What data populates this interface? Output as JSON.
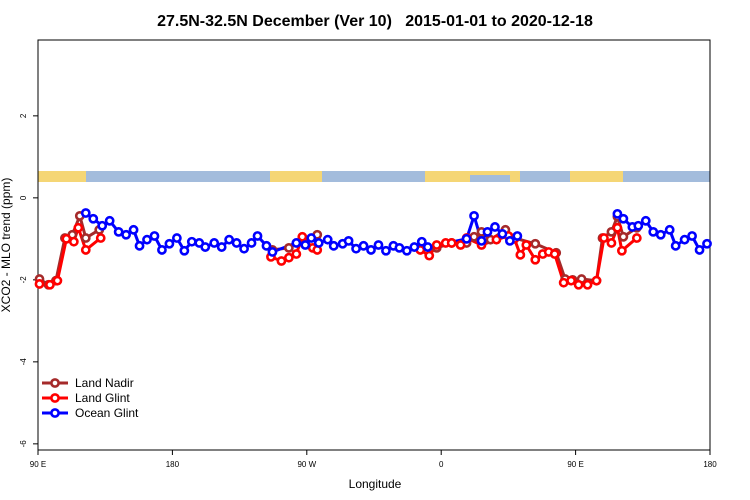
{
  "chart_data": {
    "type": "line",
    "title": "27.5N-32.5N December (Ver 10)   2015-01-01 to 2020-12-18",
    "x_label": "Longitude",
    "y_label": "XCO2 - MLO trend (ppm)",
    "xlim": [
      90,
      540
    ],
    "xticks": [
      {
        "value": 90,
        "label": "90 E"
      },
      180,
      {
        "value": 270,
        "label": "90 W"
      },
      {
        "value": 360,
        "label": "0"
      },
      {
        "value": 450,
        "label": "90 E"
      },
      {
        "value": 540,
        "label": "180"
      }
    ],
    "ylim": [
      -6.15,
      3.85
    ],
    "yticks": [
      -6,
      -4,
      -2,
      0,
      2
    ],
    "legend": "bottom-left",
    "series": [
      {
        "name": "Land Nadir",
        "color": "#a52a2a",
        "x": [
          91,
          97,
          102,
          108,
          113,
          118,
          122,
          131,
          null,
          247,
          258,
          267,
          277,
          null,
          357,
          367,
          377,
          382,
          387,
          393,
          403,
          409,
          423,
          437,
          443,
          448,
          454,
          464,
          468,
          474,
          478,
          482,
          491
        ],
        "values": [
          -1.98,
          -2.12,
          -2.02,
          -0.98,
          -0.9,
          -0.44,
          -0.98,
          -0.78,
          null,
          -1.27,
          -1.22,
          -0.98,
          -0.9,
          null,
          -1.22,
          -1.1,
          -1.1,
          -0.95,
          -0.83,
          -1.02,
          -0.78,
          -0.98,
          -1.12,
          -1.34,
          -1.98,
          -2.0,
          -1.98,
          -2.02,
          -0.98,
          -0.83,
          -0.46,
          -0.95,
          -0.73
        ]
      },
      {
        "name": "Land Glint",
        "color": "#ff0000",
        "x": [
          91,
          98,
          103,
          109,
          114,
          117,
          122,
          132,
          null,
          246,
          253,
          258,
          263,
          267,
          274,
          277,
          null,
          346,
          352,
          357,
          363,
          367,
          373,
          377,
          387,
          397,
          405,
          409,
          413,
          417,
          423,
          428,
          432,
          436,
          442,
          447,
          452,
          458,
          464,
          469,
          474,
          478,
          481,
          491
        ],
        "values": [
          -2.1,
          -2.12,
          -2.02,
          -1.0,
          -1.07,
          -0.73,
          -1.27,
          -0.98,
          null,
          -1.44,
          -1.54,
          -1.46,
          -1.37,
          -0.95,
          -1.22,
          -1.27,
          null,
          -1.27,
          -1.41,
          -1.15,
          -1.1,
          -1.1,
          -1.15,
          -0.98,
          -1.15,
          -1.02,
          -0.93,
          -1.0,
          -1.39,
          -1.15,
          -1.51,
          -1.37,
          -1.32,
          -1.37,
          -2.07,
          -2.02,
          -2.12,
          -2.12,
          -2.02,
          -0.98,
          -1.1,
          -0.73,
          -1.29,
          -0.98
        ]
      },
      {
        "name": "Ocean Glint",
        "color": "#0000ff",
        "x": [
          122,
          127,
          133,
          138,
          144,
          149,
          154,
          158,
          163,
          168,
          173,
          178,
          183,
          188,
          193,
          198,
          202,
          208,
          213,
          218,
          223,
          228,
          233,
          237,
          243,
          247,
          263,
          269,
          273,
          278,
          284,
          288,
          294,
          298,
          303,
          308,
          313,
          318,
          323,
          328,
          332,
          337,
          342,
          347,
          351,
          377,
          382,
          387,
          391,
          396,
          401,
          406,
          411,
          null,
          478,
          482,
          488,
          492,
          497,
          502,
          507,
          513,
          517,
          523,
          528,
          533,
          538
        ],
        "values": [
          -0.37,
          -0.51,
          -0.68,
          -0.56,
          -0.83,
          -0.9,
          -0.78,
          -1.17,
          -1.02,
          -0.93,
          -1.27,
          -1.12,
          -0.98,
          -1.29,
          -1.07,
          -1.1,
          -1.2,
          -1.1,
          -1.2,
          -1.02,
          -1.1,
          -1.24,
          -1.1,
          -0.93,
          -1.17,
          -1.32,
          -1.1,
          -1.15,
          -0.98,
          -1.1,
          -1.02,
          -1.17,
          -1.12,
          -1.05,
          -1.24,
          -1.17,
          -1.27,
          -1.15,
          -1.29,
          -1.17,
          -1.22,
          -1.29,
          -1.2,
          -1.07,
          -1.2,
          -1.0,
          -0.44,
          -1.05,
          -0.83,
          -0.71,
          -0.88,
          -1.05,
          -0.93,
          null,
          -0.39,
          -0.51,
          -0.71,
          -0.68,
          -0.56,
          -0.83,
          -0.9,
          -0.78,
          -1.17,
          -1.02,
          -0.93,
          -1.27,
          -1.12
        ]
      }
    ]
  }
}
